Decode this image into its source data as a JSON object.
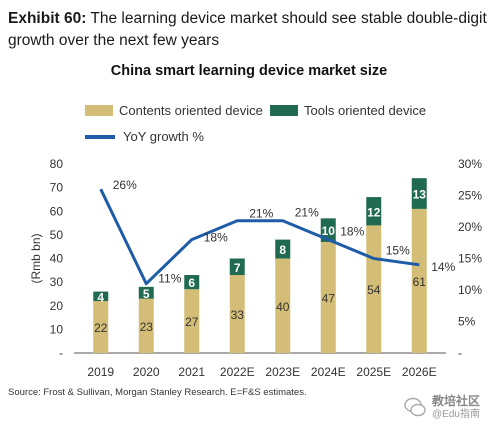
{
  "exhibit": {
    "tag": "Exhibit 60:",
    "text": "The learning device market should see stable double-digit growth over the next few years"
  },
  "source": "Source: Frost & Sullivan, Morgan Stanley Research. E=F&S estimates.",
  "watermark": {
    "line1": "教培社区",
    "line2": "@Edu指南"
  },
  "colors": {
    "contents": "#d4bd76",
    "tools": "#206a52",
    "growth": "#1f5ca8"
  },
  "chart_data": {
    "type": "bar",
    "title": "China smart learning device market size",
    "ylabel": "(Rmb bn)",
    "categories": [
      "2019",
      "2020",
      "2021",
      "2022E",
      "2023E",
      "2024E",
      "2025E",
      "2026E"
    ],
    "series": [
      {
        "name": "Contents oriented device",
        "values": [
          22,
          23,
          27,
          33,
          40,
          47,
          54,
          61
        ],
        "stacked": true,
        "color": "#d4bd76"
      },
      {
        "name": "Tools oriented device",
        "values": [
          4,
          5,
          6,
          7,
          8,
          10,
          12,
          13
        ],
        "stacked": true,
        "color": "#206a52"
      },
      {
        "name": "YoY growth %",
        "type": "line",
        "axis": "right",
        "values": [
          26,
          11,
          18,
          21,
          21,
          18,
          15,
          14
        ],
        "labels": [
          "26%",
          "11%",
          "18%",
          "21%",
          "21%",
          "18%",
          "15%",
          "14%"
        ],
        "color": "#1f5ca8"
      }
    ],
    "ylim": [
      0,
      80
    ],
    "yticks": [
      "-",
      "10",
      "20",
      "30",
      "40",
      "50",
      "60",
      "70",
      "80"
    ],
    "y2lim": [
      0,
      30
    ],
    "y2ticks": [
      "-",
      "5%",
      "10%",
      "15%",
      "20%",
      "25%",
      "30%"
    ],
    "legend_position": "top",
    "grid": false
  }
}
